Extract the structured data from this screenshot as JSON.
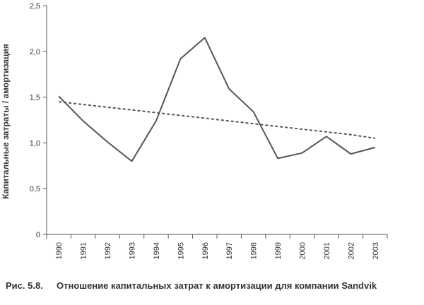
{
  "caption": {
    "label": "Рис. 5.8.",
    "text": "Отношение капитальных затрат к амортизации для компании Sandvik"
  },
  "chart_data": {
    "type": "line",
    "xlabel": "",
    "ylabel": "Капитальные затраты / амортизация",
    "ylim": [
      0,
      2.5
    ],
    "yticks": [
      "0",
      "0,5",
      "1,0",
      "1,5",
      "2,0",
      "2,5"
    ],
    "categories": [
      "1990",
      "1991",
      "1992",
      "1993",
      "1994",
      "1995",
      "1996",
      "1997",
      "1998",
      "1999",
      "2000",
      "2001",
      "2002",
      "2003"
    ],
    "grid": false,
    "legend": "none",
    "series": [
      {
        "style": "solid",
        "color": "#555555",
        "values": [
          1.51,
          1.24,
          1.01,
          0.8,
          1.24,
          1.92,
          2.15,
          1.59,
          1.34,
          0.83,
          0.89,
          1.07,
          0.88,
          0.95
        ]
      },
      {
        "style": "dashed",
        "color": "#555555",
        "values": [
          1.45,
          1.42,
          1.39,
          1.36,
          1.33,
          1.3,
          1.27,
          1.24,
          1.21,
          1.18,
          1.15,
          1.12,
          1.09,
          1.05
        ]
      }
    ]
  }
}
